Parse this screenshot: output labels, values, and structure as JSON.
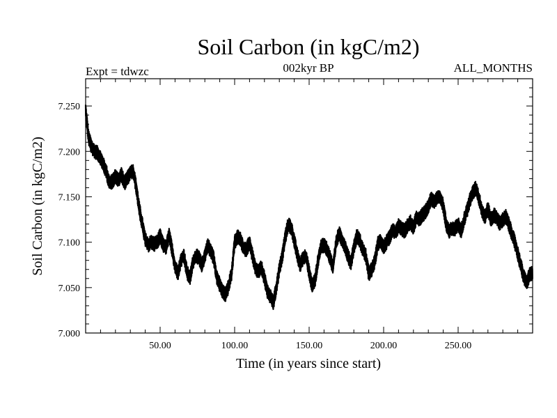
{
  "chart_data": {
    "type": "line",
    "title": "Soil Carbon (in kgC/m2)",
    "subtitle_left": "Expt = tdwzc",
    "subtitle_center": "002kyr BP",
    "subtitle_right": "ALL_MONTHS",
    "xlabel": "Time (in years since start)",
    "ylabel": "Soil Carbon (in kgC/m2)",
    "xlim": [
      0,
      300
    ],
    "ylim": [
      7.0,
      7.28
    ],
    "x_ticks": [
      50,
      100,
      150,
      200,
      250
    ],
    "x_tick_labels": [
      "50.00",
      "100.00",
      "150.00",
      "200.00",
      "250.00"
    ],
    "y_ticks": [
      7.0,
      7.05,
      7.1,
      7.15,
      7.2,
      7.25
    ],
    "y_tick_labels": [
      "7.000",
      "7.050",
      "7.100",
      "7.150",
      "7.200",
      "7.250"
    ],
    "line_color": "#000000",
    "series": [
      {
        "x": [
          0,
          2,
          4,
          6,
          8,
          10,
          12,
          14,
          16,
          18,
          20,
          22,
          24,
          26,
          28,
          30,
          32,
          34,
          36,
          38,
          40,
          42,
          44,
          46,
          48,
          50,
          52,
          54,
          56,
          58,
          60,
          62,
          64,
          66,
          68,
          70,
          72,
          74,
          76,
          78,
          80,
          82,
          84,
          86,
          88,
          90,
          92,
          94,
          96,
          98,
          100,
          102,
          104,
          106,
          108,
          110,
          112,
          114,
          116,
          118,
          120,
          122,
          124,
          126,
          128,
          130,
          132,
          134,
          136,
          138,
          140,
          142,
          144,
          146,
          148,
          150,
          152,
          154,
          156,
          158,
          160,
          162,
          164,
          166,
          168,
          170,
          172,
          174,
          176,
          178,
          180,
          182,
          184,
          186,
          188,
          190,
          192,
          194,
          196,
          198,
          200,
          202,
          204,
          206,
          208,
          210,
          212,
          214,
          216,
          218,
          220,
          222,
          224,
          226,
          228,
          230,
          232,
          234,
          236,
          238,
          240,
          242,
          244,
          246,
          248,
          250,
          252,
          254,
          256,
          258,
          260,
          262,
          264,
          266,
          268,
          270,
          272,
          274,
          276,
          278,
          280,
          282,
          284,
          286,
          288,
          290,
          292,
          294,
          296,
          298
        ],
        "y": [
          7.245,
          7.215,
          7.205,
          7.2,
          7.198,
          7.193,
          7.185,
          7.177,
          7.165,
          7.167,
          7.173,
          7.168,
          7.175,
          7.165,
          7.17,
          7.177,
          7.178,
          7.16,
          7.137,
          7.12,
          7.103,
          7.097,
          7.1,
          7.098,
          7.1,
          7.107,
          7.097,
          7.094,
          7.108,
          7.092,
          7.073,
          7.066,
          7.08,
          7.085,
          7.067,
          7.06,
          7.078,
          7.085,
          7.083,
          7.075,
          7.085,
          7.097,
          7.09,
          7.082,
          7.062,
          7.053,
          7.045,
          7.042,
          7.052,
          7.066,
          7.1,
          7.106,
          7.103,
          7.093,
          7.092,
          7.1,
          7.085,
          7.07,
          7.068,
          7.072,
          7.06,
          7.046,
          7.04,
          7.033,
          7.05,
          7.07,
          7.085,
          7.106,
          7.12,
          7.116,
          7.102,
          7.086,
          7.075,
          7.083,
          7.085,
          7.067,
          7.052,
          7.058,
          7.08,
          7.095,
          7.097,
          7.092,
          7.083,
          7.072,
          7.098,
          7.11,
          7.103,
          7.096,
          7.085,
          7.077,
          7.094,
          7.107,
          7.102,
          7.092,
          7.085,
          7.065,
          7.07,
          7.078,
          7.098,
          7.102,
          7.095,
          7.1,
          7.105,
          7.113,
          7.11,
          7.118,
          7.115,
          7.112,
          7.118,
          7.122,
          7.115,
          7.128,
          7.125,
          7.13,
          7.133,
          7.14,
          7.148,
          7.145,
          7.148,
          7.15,
          7.14,
          7.12,
          7.112,
          7.115,
          7.115,
          7.12,
          7.112,
          7.125,
          7.135,
          7.147,
          7.155,
          7.16,
          7.148,
          7.135,
          7.128,
          7.137,
          7.125,
          7.13,
          7.127,
          7.12,
          7.125,
          7.128,
          7.12,
          7.11,
          7.1,
          7.088,
          7.075,
          7.062,
          7.055,
          7.065
        ]
      }
    ]
  }
}
